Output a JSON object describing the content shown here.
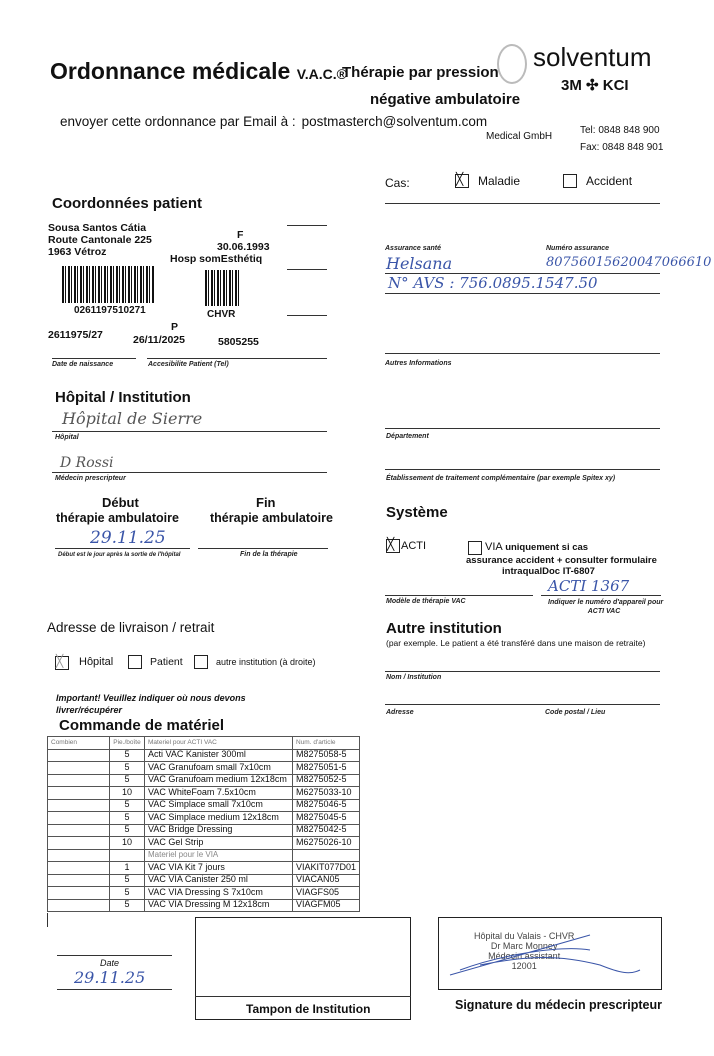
{
  "header": {
    "title": "Ordonnance médicale",
    "title_suffix": "V.A.C.®",
    "subtitle_1": "Thérapie par pression",
    "subtitle_2": "négative ambulatoire",
    "email_prompt": "envoyer cette ordonnance par Email à :",
    "email": "postmasterch@solventum.com",
    "brand": "solventum",
    "brand_sub": "3M ✣ KCI",
    "company": "Medical GmbH",
    "tel": "Tel: 0848 848 900",
    "fax": "Fax: 0848 848 901"
  },
  "cas": {
    "label": "Cas:",
    "options": [
      {
        "label": "Maladie",
        "checked": true
      },
      {
        "label": "Accident",
        "checked": false
      }
    ]
  },
  "patient": {
    "heading": "Coordonnées patient",
    "name": "Sousa Santos Cátia",
    "street": "Route Cantonale 225",
    "city": "1963 Vétroz",
    "sex": "F",
    "dob": "30.06.1993",
    "unit": "Hosp somEsthétiq",
    "barcode1": "0261197510271",
    "barcode2": "CHVR",
    "id": "2611975/27",
    "letter": "P",
    "date": "26/11/2025",
    "number": "5805255",
    "dob_label": "Date de naissance",
    "tel_label": "Accesibilite Patient (Tel)"
  },
  "insurance": {
    "label": "Assurance santé",
    "value": "Helsana",
    "number_label": "Numéro assurance",
    "number": "80756015620047066610",
    "avs": "N° AVS : 756.0895.1547.50",
    "other_label": "Autres Informations"
  },
  "hospital": {
    "heading": "Hôpital / Institution",
    "hospital_value": "Hôpital de Sierre",
    "hospital_label": "Hôpital",
    "doctor_value": "D Rossi",
    "doctor_label": "Médecin prescripteur",
    "dept_label": "Département",
    "etab_label": "Établissement de traitement complémentaire (par exemple Spitex xy)"
  },
  "therapy": {
    "start_title": "Début",
    "start_sub": "thérapie ambulatoire",
    "end_title": "Fin",
    "end_sub": "thérapie ambulatoire",
    "start_value": "29.11.25",
    "start_label": "Début est le jour après la sortie de l'hôpital",
    "end_label": "Fin de la thérapie"
  },
  "system": {
    "heading": "Système",
    "acti": "ACTI",
    "acti_checked": true,
    "via": "VIA",
    "via_note_1": "uniquement si cas",
    "via_note_2": "assurance accident + consulter formulaire",
    "via_note_3": "intraqualDoc IT-6807",
    "model_label": "Modèle de thérapie VAC",
    "device_value": "ACTI 1367",
    "device_label_1": "Indiquer le numéro d'appareil pour",
    "device_label_2": "ACTI VAC"
  },
  "other": {
    "heading": "Autre institution",
    "note": "(par exemple. Le patient a été transféré dans une maison de retraite)",
    "name_label": "Nom / Institution",
    "address_label": "Adresse",
    "zip_label": "Code postal / Lieu"
  },
  "delivery": {
    "heading": "Adresse de livraison / retrait",
    "options": [
      {
        "label": "Hôpital",
        "checked": true
      },
      {
        "label": "Patient",
        "checked": false
      },
      {
        "label": "autre institution (à droite)",
        "checked": false
      }
    ],
    "important_1": "Important! Veuillez indiquer où nous devons",
    "important_2": "livrer/récupérer"
  },
  "order": {
    "heading": "Commande de matériel",
    "columns": [
      "Combien",
      "Pie./boîte",
      "Materiel pour ACTI VAC",
      "Num. d'article"
    ],
    "rows": [
      [
        "",
        "5",
        "Acti VAC Kanister 300ml",
        "M8275058-5"
      ],
      [
        "",
        "5",
        "VAC Granufoam small 7x10cm",
        "M8275051-5"
      ],
      [
        "",
        "5",
        "VAC Granufoam medium 12x18cm",
        "M8275052-5"
      ],
      [
        "",
        "10",
        "VAC WhiteFoam 7.5x10cm",
        "M6275033-10"
      ],
      [
        "",
        "5",
        "VAC Simplace small 7x10cm",
        "M8275046-5"
      ],
      [
        "",
        "5",
        "VAC Simplace medium 12x18cm",
        "M8275045-5"
      ],
      [
        "",
        "5",
        "VAC Bridge Dressing",
        "M8275042-5"
      ],
      [
        "",
        "10",
        "VAC Gel Strip",
        "M6275026-10"
      ]
    ],
    "via_heading": "Materiel pour le VIA",
    "via_rows": [
      [
        "",
        "1",
        "VAC VIA Kit 7 jours",
        "VIAKIT077D01"
      ],
      [
        "",
        "5",
        "VAC VIA Canister 250 ml",
        "VIACAN05"
      ],
      [
        "",
        "5",
        "VAC VIA Dressing S 7x10cm",
        "VIAGFS05"
      ],
      [
        "",
        "5",
        "VAC VIA Dressing M 12x18cm",
        "VIAGFM05"
      ]
    ]
  },
  "footer": {
    "date_label": "Date",
    "date_value": "29.11.25",
    "stamp_label": "Tampon de Institution",
    "signature_label": "Signature du médecin prescripteur",
    "stamp_1": "Hôpital du Valais - CHVR",
    "stamp_2": "Dr Marc Monney",
    "stamp_3": "Médecin assistant",
    "stamp_4": "12001"
  }
}
